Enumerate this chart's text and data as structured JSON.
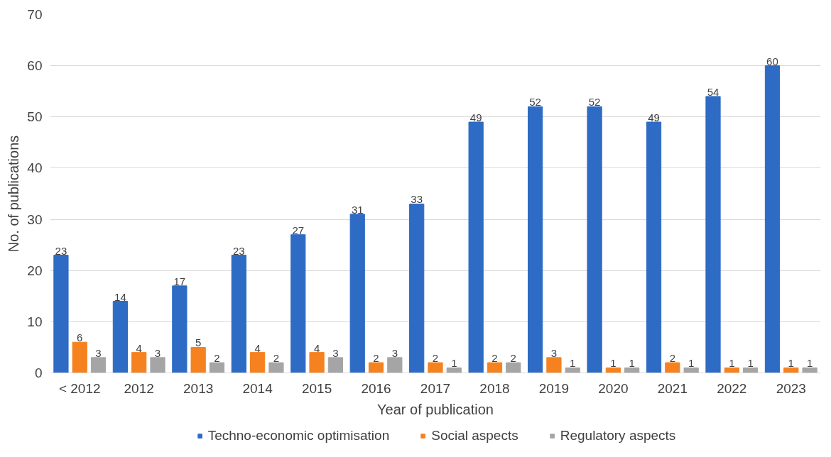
{
  "chart_data": {
    "type": "bar",
    "xlabel": "Year of publication",
    "ylabel": "No. of publications",
    "categories": [
      "< 2012",
      "2012",
      "2013",
      "2014",
      "2015",
      "2016",
      "2017",
      "2018",
      "2019",
      "2020",
      "2021",
      "2022",
      "2023"
    ],
    "series": [
      {
        "name": "Techno-economic optimisation",
        "color": "#2e6bc4",
        "values": [
          23,
          14,
          17,
          23,
          27,
          31,
          33,
          49,
          52,
          52,
          49,
          54,
          60
        ]
      },
      {
        "name": "Social aspects",
        "color": "#f5821f",
        "values": [
          6,
          4,
          5,
          4,
          4,
          2,
          2,
          2,
          3,
          1,
          2,
          1,
          1
        ]
      },
      {
        "name": "Regulatory aspects",
        "color": "#a5a5a5",
        "values": [
          3,
          3,
          2,
          2,
          3,
          3,
          1,
          2,
          1,
          1,
          1,
          1,
          1
        ]
      }
    ],
    "ylim": [
      0,
      70
    ],
    "yticks": [
      0,
      10,
      20,
      30,
      40,
      50,
      60,
      70
    ],
    "grid": "y",
    "legend": "bottom",
    "data_labels": true
  }
}
